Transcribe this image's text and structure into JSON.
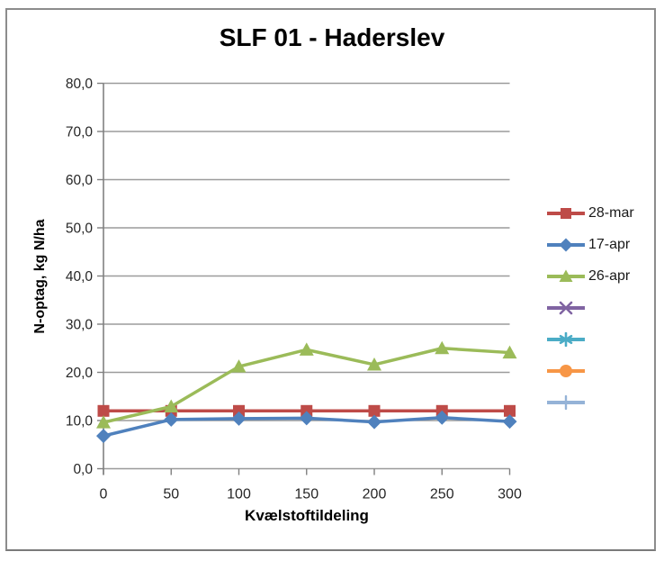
{
  "figure": {
    "border_color": "#8c8c8c",
    "background": "#ffffff"
  },
  "chart_data": {
    "type": "line",
    "title": "SLF 01 - Haderslev",
    "xlabel": "Kvælstoftildeling",
    "ylabel": "N-optag, kg N/ha",
    "grid": true,
    "legend_position": "right",
    "decimal_separator": ",",
    "xlim": [
      0,
      300
    ],
    "ylim": [
      0,
      80
    ],
    "x": [
      0,
      50,
      100,
      150,
      200,
      250,
      300
    ],
    "x_tick_labels": [
      "0",
      "50",
      "100",
      "150",
      "200",
      "250",
      "300"
    ],
    "y_ticks": [
      0,
      10,
      20,
      30,
      40,
      50,
      60,
      70,
      80
    ],
    "y_tick_labels": [
      "0,0",
      "10,0",
      "20,0",
      "30,0",
      "40,0",
      "50,0",
      "60,0",
      "70,0",
      "80,0"
    ],
    "series": [
      {
        "name": "28-mar",
        "marker": "square",
        "color": "#BE4B48",
        "values": [
          12.0,
          12.0,
          12.0,
          12.0,
          12.0,
          12.0,
          12.0
        ]
      },
      {
        "name": "17-apr",
        "marker": "diamond",
        "color": "#4F81BD",
        "values": [
          6.8,
          10.2,
          10.4,
          10.5,
          9.7,
          10.6,
          9.8
        ]
      },
      {
        "name": "26-apr",
        "marker": "triangle",
        "color": "#9BBB59",
        "values": [
          9.6,
          12.9,
          21.2,
          24.7,
          21.6,
          25.0,
          24.1
        ]
      },
      {
        "name": "",
        "marker": "x",
        "color": "#8064A2",
        "values": []
      },
      {
        "name": "",
        "marker": "asterisk",
        "color": "#4BACC6",
        "values": []
      },
      {
        "name": "",
        "marker": "circle",
        "color": "#F79646",
        "values": []
      },
      {
        "name": "",
        "marker": "plus",
        "color": "#95B3D7",
        "values": []
      }
    ],
    "style": {
      "gridline_color": "#9b9b9b",
      "axis_color": "#808080",
      "tick_label_color": "#262626",
      "line_width": 3.5,
      "marker_size": 13
    }
  }
}
